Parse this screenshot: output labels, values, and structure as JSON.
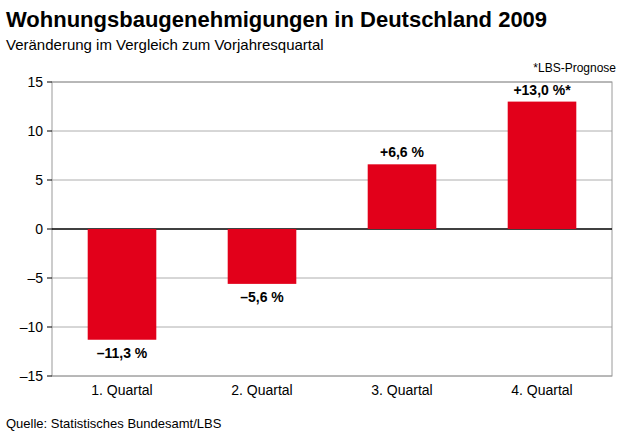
{
  "chart_data": {
    "type": "bar",
    "title": "Wohnungsbaugenehmigungen in Deutschland 2009",
    "subtitle": "Veränderung im Vergleich zum Vorjahresquartal",
    "annotations": [
      "*LBS-Prognose"
    ],
    "source": "Quelle: Statistisches Bundesamt/LBS",
    "categories": [
      "1. Quartal",
      "2. Quartal",
      "3. Quartal",
      "4. Quartal"
    ],
    "values": [
      -11.3,
      -5.6,
      6.6,
      13.0
    ],
    "value_labels": [
      "–11,3 %",
      "–5,6 %",
      "+6,6 %",
      "+13,0 %*"
    ],
    "color": "#e2001a",
    "ylim": [
      -15,
      15
    ],
    "yticks": [
      {
        "value": -15,
        "label": "–15"
      },
      {
        "value": -10,
        "label": "–10"
      },
      {
        "value": -5,
        "label": "–5"
      },
      0,
      5,
      10,
      15
    ],
    "grid": true,
    "data_labels": true
  }
}
